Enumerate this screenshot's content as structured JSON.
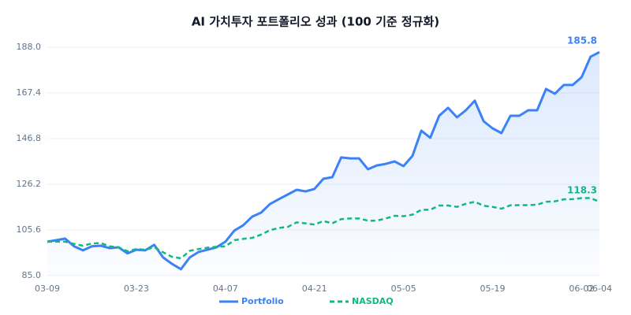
{
  "chart_data": {
    "type": "line",
    "title": "AI 가치투자 포트폴리오 성과 (100 기준 정규화)",
    "categories": [
      "03-09",
      null,
      null,
      null,
      null,
      null,
      null,
      null,
      null,
      null,
      "03-23",
      null,
      null,
      null,
      null,
      null,
      null,
      null,
      null,
      null,
      "04-07",
      null,
      null,
      null,
      null,
      null,
      null,
      null,
      null,
      null,
      "04-21",
      null,
      null,
      null,
      null,
      null,
      null,
      null,
      null,
      null,
      "05-05",
      null,
      null,
      null,
      null,
      null,
      null,
      null,
      null,
      null,
      "05-19",
      null,
      null,
      null,
      null,
      null,
      null,
      null,
      null,
      null,
      "06-02",
      null,
      "06-04"
    ],
    "series": [
      {
        "name": "Portfolio",
        "color": "#3b82f6",
        "dashed": false,
        "area": true,
        "values": [
          100.3,
          101,
          101.7,
          98.2,
          96.4,
          98.2,
          98.5,
          97.4,
          97.8,
          95,
          96.7,
          96.4,
          98.9,
          93.2,
          90.3,
          87.9,
          93.2,
          95.7,
          96.7,
          97.8,
          100.3,
          105.3,
          107.7,
          111.6,
          113.4,
          117.3,
          119.5,
          121.6,
          123.7,
          123,
          124.1,
          128.7,
          129.4,
          138.3,
          137.9,
          137.9,
          133,
          134.7,
          135.4,
          136.5,
          134.4,
          139,
          150.4,
          147.2,
          157.1,
          160.7,
          156.4,
          159.6,
          163.9,
          154.6,
          151.4,
          149.3,
          157.1,
          157.1,
          159.6,
          159.6,
          169.2,
          167,
          171,
          171,
          174.5,
          183.7,
          185.8
        ]
      },
      {
        "name": "NASDAQ",
        "color": "#10b981",
        "dashed": true,
        "area": false,
        "values": [
          100.3,
          100.3,
          100.3,
          99.3,
          98.5,
          99.5,
          99.7,
          98.2,
          97.8,
          96,
          97,
          96.7,
          97.8,
          95.5,
          93.5,
          92.8,
          96.2,
          97,
          97.6,
          98,
          98.2,
          101,
          101.6,
          102,
          103.5,
          105.5,
          106.5,
          107,
          109,
          108.6,
          108,
          109.6,
          108.6,
          110.5,
          110.8,
          110.8,
          109.8,
          109.8,
          110.8,
          112,
          111.8,
          112.5,
          114.7,
          114.7,
          116.6,
          116.6,
          116,
          117.4,
          118.3,
          116.5,
          116,
          115.2,
          116.7,
          116.8,
          116.8,
          117,
          118.3,
          118.5,
          119.4,
          119.5,
          120,
          120,
          118.3
        ]
      }
    ],
    "ylim": [
      85,
      188
    ],
    "yticks": [
      {
        "value": 85,
        "label": "85.0"
      },
      {
        "value": 105.6,
        "label": "105.6"
      },
      {
        "value": 126.2,
        "label": "126.2"
      },
      {
        "value": 146.8,
        "label": "146.8"
      },
      {
        "value": 167.4,
        "label": "167.4"
      },
      {
        "value": 188,
        "label": "188.0"
      }
    ],
    "grid": true,
    "legend": "bottom"
  }
}
